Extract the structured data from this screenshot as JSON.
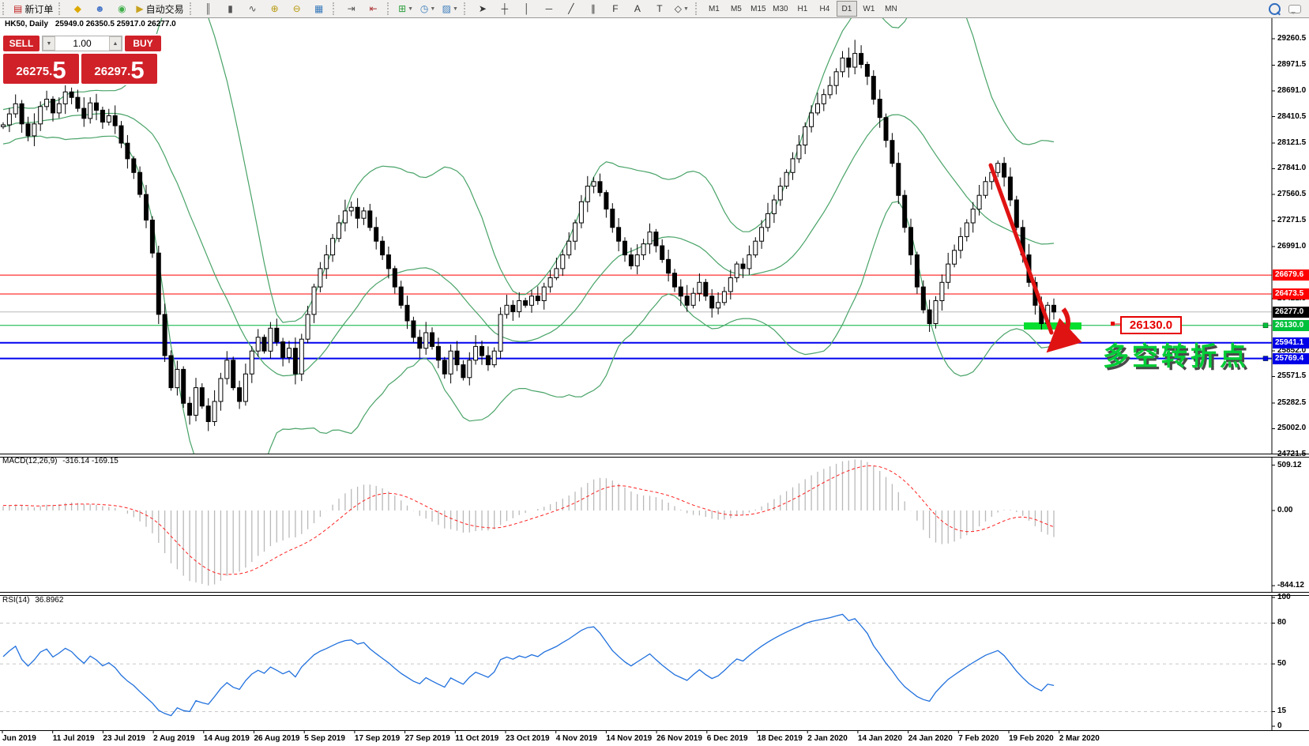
{
  "toolbar": {
    "new_order_label": "新订单",
    "auto_trading_label": "自动交易",
    "groups": [
      [
        {
          "name": "new-order-button",
          "glyph": "▤",
          "color": "#c22121",
          "label_key": "new_order_label"
        }
      ],
      [
        {
          "name": "gold-icon",
          "glyph": "◆",
          "color": "#dda900"
        },
        {
          "name": "community-icon",
          "glyph": "☻",
          "color": "#4a78c8"
        },
        {
          "name": "signals-icon",
          "glyph": "◉",
          "color": "#3fae49"
        },
        {
          "name": "autotrade-button",
          "glyph": "▶",
          "color": "#c8a11e",
          "label_key": "auto_trading_label"
        }
      ],
      [
        {
          "name": "bar-chart-icon",
          "glyph": "║",
          "color": "#555"
        },
        {
          "name": "candlestick-chart-icon",
          "glyph": "▮",
          "color": "#555"
        },
        {
          "name": "line-chart-icon",
          "glyph": "∿",
          "color": "#555"
        },
        {
          "name": "zoom-in-icon",
          "glyph": "⊕",
          "color": "#b89a10"
        },
        {
          "name": "zoom-out-icon",
          "glyph": "⊖",
          "color": "#b89a10"
        },
        {
          "name": "tile-windows-icon",
          "glyph": "▦",
          "color": "#3a7abc"
        }
      ],
      [
        {
          "name": "chart-shift-icon",
          "glyph": "⇥",
          "color": "#555"
        },
        {
          "name": "auto-scroll-icon",
          "glyph": "⇤",
          "color": "#a33"
        }
      ],
      [
        {
          "name": "indicators-icon",
          "glyph": "⊞",
          "color": "#2e9e3e",
          "dropdown": true
        },
        {
          "name": "periods-icon",
          "glyph": "◷",
          "color": "#3a7abc",
          "dropdown": true
        },
        {
          "name": "templates-icon",
          "glyph": "▨",
          "color": "#3a7abc",
          "dropdown": true
        }
      ],
      [
        {
          "name": "cursor-icon",
          "glyph": "➤",
          "color": "#333"
        },
        {
          "name": "crosshair-icon",
          "glyph": "┼",
          "color": "#333"
        },
        {
          "name": "vertical-line-icon",
          "glyph": "│",
          "color": "#333"
        },
        {
          "name": "horizontal-line-icon",
          "glyph": "─",
          "color": "#333"
        },
        {
          "name": "trendline-icon",
          "glyph": "╱",
          "color": "#333"
        },
        {
          "name": "equidistant-channel-icon",
          "glyph": "∥",
          "color": "#333"
        },
        {
          "name": "fibonacci-icon",
          "glyph": "F",
          "color": "#333"
        },
        {
          "name": "text-icon",
          "glyph": "A",
          "color": "#333"
        },
        {
          "name": "label-icon",
          "glyph": "T",
          "color": "#333"
        },
        {
          "name": "arrows-icon",
          "glyph": "◇",
          "color": "#333",
          "dropdown": true
        }
      ]
    ]
  },
  "timeframes": {
    "items": [
      "M1",
      "M5",
      "M15",
      "M30",
      "H1",
      "H4",
      "D1",
      "W1",
      "MN"
    ],
    "active": "D1"
  },
  "chart_header": {
    "symbol_period": "HK50, Daily",
    "ohlc": "25949.0 26350.5 25917.0 26277.0"
  },
  "quote_panel": {
    "sell_label": "SELL",
    "buy_label": "BUY",
    "volume": "1.00",
    "sell_price_main": "26275.",
    "sell_price_pips": "5",
    "buy_price_main": "26297.",
    "buy_price_pips": "5"
  },
  "price_axis": {
    "ticks": [
      29260.5,
      28971.5,
      28691.0,
      28410.5,
      28121.5,
      27841.0,
      27560.5,
      27271.5,
      26991.0,
      26421.5,
      25852.0,
      25571.5,
      25282.5,
      25002.0,
      24721.5
    ],
    "levels": [
      {
        "price": 26679.6,
        "label": "26679.6",
        "badge_bg": "#ff0000",
        "line_color": "#ff0000",
        "line_width": 1
      },
      {
        "price": 26473.5,
        "label": "26473.5",
        "badge_bg": "#ff0000",
        "line_color": "#ff0000",
        "line_width": 1
      },
      {
        "price": 26277.0,
        "label": "26277.0",
        "badge_bg": "#000000",
        "line_color": "#b9b9b9",
        "line_width": 1
      },
      {
        "price": 26130.0,
        "label": "26130.0",
        "badge_bg": "#00c13b",
        "line_color": "#00b33c",
        "line_width": 1,
        "handle": true
      },
      {
        "price": 25941.1,
        "label": "25941.1",
        "badge_bg": "#0000e8",
        "line_color": "#0000f0",
        "line_width": 2
      },
      {
        "price": 25769.4,
        "label": "25769.4",
        "badge_bg": "#0000e8",
        "line_color": "#0000f0",
        "line_width": 2,
        "handle": true
      }
    ]
  },
  "macd": {
    "name": "MACD(12,26,9)",
    "values": "-316.14 -169.15",
    "axis_labels": [
      "509.12",
      "0.00",
      "-844.12"
    ]
  },
  "rsi": {
    "name": "RSI(14)",
    "value": "36.8962",
    "axis_labels": [
      100,
      80,
      50,
      15,
      0
    ],
    "dashed_levels": [
      80,
      50,
      15
    ]
  },
  "date_axis": {
    "labels": [
      "Jun 2019",
      "11 Jul 2019",
      "23 Jul 2019",
      "2 Aug 2019",
      "14 Aug 2019",
      "26 Aug 2019",
      "5 Sep 2019",
      "17 Sep 2019",
      "27 Sep 2019",
      "11 Oct 2019",
      "23 Oct 2019",
      "4 Nov 2019",
      "14 Nov 2019",
      "26 Nov 2019",
      "6 Dec 2019",
      "18 Dec 2019",
      "2 Jan 2020",
      "14 Jan 2020",
      "24 Jan 2020",
      "7 Feb 2020",
      "19 Feb 2020",
      "2 Mar 2020"
    ]
  },
  "annotations": {
    "price_box": "26130.0",
    "cn_text": "多空转折点",
    "trend_color": "#e01313",
    "bar_color": "#06df2f"
  },
  "chart_data": {
    "type": "candlestick",
    "symbol": "HK50",
    "timeframe": "Daily",
    "current_ohlc": {
      "open": 25949.0,
      "high": 26350.5,
      "low": 25917.0,
      "close": 26277.0
    },
    "y_range": [
      24721.5,
      29260.5
    ],
    "horizontal_levels": [
      26679.6,
      26473.5,
      26277.0,
      26130.0,
      25941.1,
      25769.4
    ],
    "indicators": [
      {
        "name": "Bollinger Bands",
        "period": 20,
        "deviation": 2
      },
      {
        "name": "MACD",
        "params": [
          12,
          26,
          9
        ],
        "current_values": [
          -316.14,
          -169.15
        ],
        "range": [
          -844.12,
          509.12
        ]
      },
      {
        "name": "RSI",
        "period": 14,
        "current_value": 36.8962,
        "scale": [
          0,
          100
        ]
      }
    ],
    "warmup": [
      28100,
      28180,
      28050,
      28220,
      28150,
      28300,
      28240,
      28380,
      28300,
      28420,
      28350,
      28280,
      28400,
      28320,
      28440,
      28360,
      28280,
      28390,
      28310,
      28300
    ],
    "closes": [
      28320,
      28440,
      28550,
      28330,
      28200,
      28330,
      28520,
      28600,
      28450,
      28550,
      28680,
      28620,
      28500,
      28390,
      28560,
      28480,
      28350,
      28420,
      28310,
      28120,
      27950,
      27800,
      27560,
      27280,
      26920,
      26250,
      25800,
      25450,
      25650,
      25280,
      25150,
      25450,
      25250,
      25080,
      25300,
      25550,
      25750,
      25450,
      25300,
      25600,
      25850,
      26000,
      25850,
      26100,
      25950,
      25780,
      25880,
      25600,
      25980,
      26250,
      26550,
      26750,
      26900,
      27080,
      27250,
      27380,
      27420,
      27300,
      27380,
      27200,
      27050,
      26900,
      26750,
      26550,
      26350,
      26180,
      26000,
      25880,
      26050,
      25900,
      25750,
      25600,
      25850,
      25700,
      25560,
      25750,
      25900,
      25800,
      25700,
      25850,
      26250,
      26350,
      26280,
      26400,
      26350,
      26450,
      26400,
      26550,
      26650,
      26750,
      26900,
      27050,
      27250,
      27480,
      27650,
      27700,
      27580,
      27400,
      27200,
      27050,
      26900,
      26780,
      26900,
      27020,
      27150,
      27000,
      26850,
      26700,
      26550,
      26450,
      26350,
      26480,
      26600,
      26450,
      26320,
      26380,
      26500,
      26650,
      26800,
      26750,
      26900,
      27050,
      27200,
      27350,
      27500,
      27650,
      27800,
      27950,
      28100,
      28300,
      28450,
      28550,
      28650,
      28750,
      28900,
      29050,
      28950,
      29100,
      28980,
      28850,
      28600,
      28400,
      28150,
      27900,
      27550,
      27200,
      26900,
      26550,
      26300,
      26150,
      26400,
      26600,
      26800,
      26950,
      27100,
      27250,
      27400,
      27550,
      27700,
      27800,
      27900,
      27750,
      27500,
      27200,
      26900,
      26600,
      26350,
      26150,
      26350,
      26277
    ]
  }
}
